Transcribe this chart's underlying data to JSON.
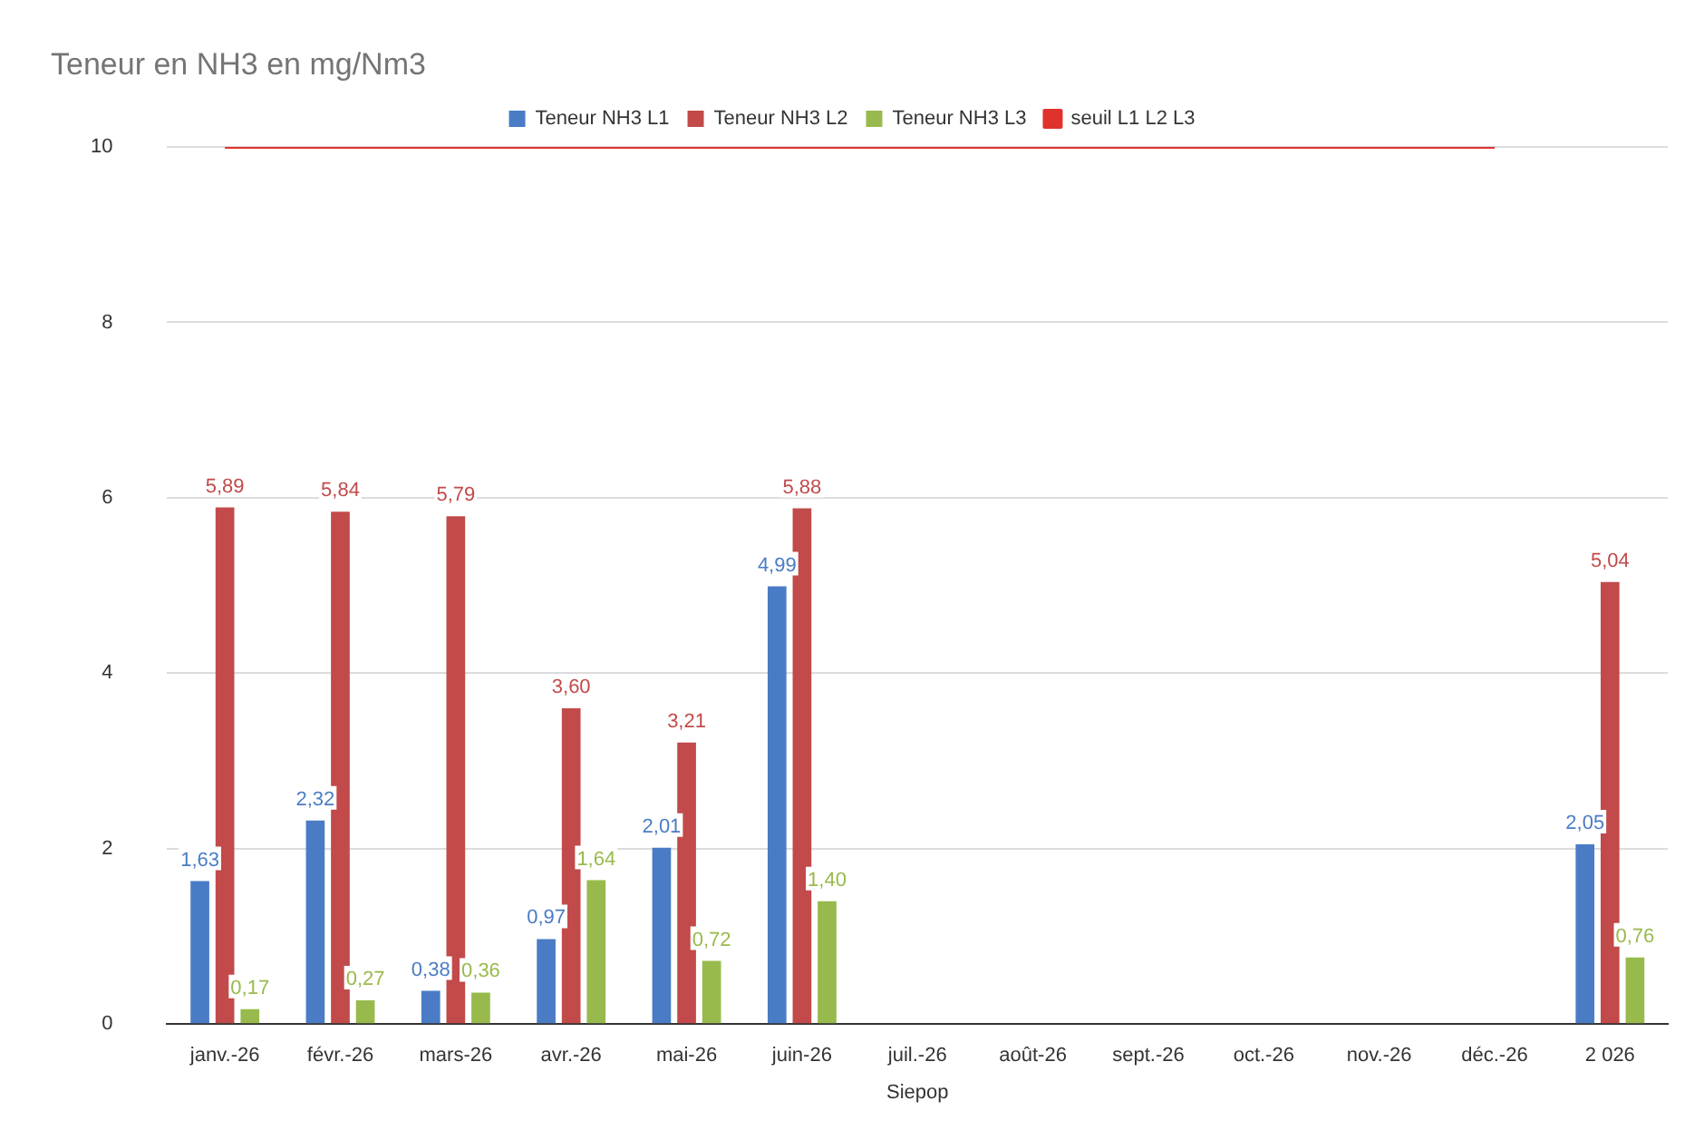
{
  "chart_data": {
    "type": "bar",
    "title": "Teneur en NH3 en mg/Nm3",
    "xlabel": "Siepop",
    "categories": [
      "janv.-26",
      "févr.-26",
      "mars-26",
      "avr.-26",
      "mai-26",
      "juin-26",
      "juil.-26",
      "août-26",
      "sept.-26",
      "oct.-26",
      "nov.-26",
      "déc.-26",
      "2 026"
    ],
    "series": [
      {
        "name": "Teneur NH3 L1",
        "color": "#4a7cc6",
        "values": [
          1.63,
          2.32,
          0.38,
          0.97,
          2.01,
          4.99,
          null,
          null,
          null,
          null,
          null,
          null,
          2.05
        ],
        "value_labels": [
          "1,63",
          "2,32",
          "0,38",
          "0,97",
          "2,01",
          "4,99",
          null,
          null,
          null,
          null,
          null,
          null,
          "2,05"
        ]
      },
      {
        "name": "Teneur NH3 L2",
        "color": "#c24a4a",
        "values": [
          5.89,
          5.84,
          5.79,
          3.6,
          3.21,
          5.88,
          null,
          null,
          null,
          null,
          null,
          null,
          5.04
        ],
        "value_labels": [
          "5,89",
          "5,84",
          "5,79",
          "3,60",
          "3,21",
          "5,88",
          null,
          null,
          null,
          null,
          null,
          null,
          "5,04"
        ]
      },
      {
        "name": "Teneur NH3 L3",
        "color": "#98ba4c",
        "values": [
          0.17,
          0.27,
          0.36,
          1.64,
          0.72,
          1.4,
          null,
          null,
          null,
          null,
          null,
          null,
          0.76
        ],
        "value_labels": [
          "0,17",
          "0,27",
          "0,36",
          "1,64",
          "0,72",
          "1,40",
          null,
          null,
          null,
          null,
          null,
          null,
          "0,76"
        ]
      },
      {
        "name": "seuil L1 L2 L3",
        "type": "line",
        "color": "#e0322c",
        "values": [
          10,
          10,
          10,
          10,
          10,
          10,
          10,
          10,
          10,
          10,
          10,
          10,
          null
        ]
      }
    ],
    "ylim": [
      0,
      10
    ],
    "yticks": [
      0,
      2,
      4,
      6,
      8,
      10
    ],
    "grid": "y",
    "legend": "top",
    "marker": "none"
  }
}
